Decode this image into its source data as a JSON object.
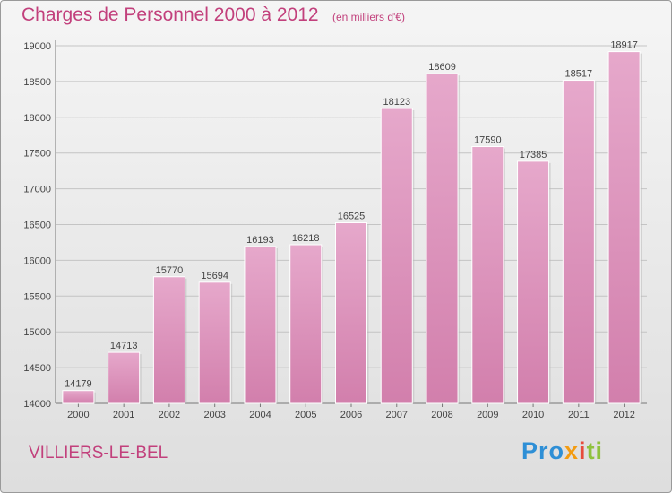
{
  "header": {
    "title": "Charges de Personnel 2000 à 2012",
    "subtitle": "(en milliers d'€)"
  },
  "footer": {
    "city": "VILLIERS-LE-BEL",
    "logo": {
      "text_1": "Pro",
      "text_2": "x",
      "text_3": "i",
      "text_4": "ti",
      "colors": [
        "#2e8fd6",
        "#f39c12",
        "#e74c3c",
        "#8fc23e"
      ]
    }
  },
  "chart_data": {
    "type": "bar",
    "title": "Charges de Personnel 2000 à 2012",
    "subtitle": "(en milliers d'€)",
    "xlabel": "",
    "ylabel": "",
    "categories": [
      "2000",
      "2001",
      "2002",
      "2003",
      "2004",
      "2005",
      "2006",
      "2007",
      "2008",
      "2009",
      "2010",
      "2011",
      "2012"
    ],
    "values": [
      14179,
      14713,
      15770,
      15694,
      16193,
      16218,
      16525,
      18123,
      18609,
      17590,
      17385,
      18517,
      18917
    ],
    "data_labels": [
      "14179",
      "14713",
      "15770",
      "15694",
      "16193",
      "16218",
      "16525",
      "18123",
      "18609",
      "17590",
      "17385",
      "18517",
      "18917"
    ],
    "ylim": [
      14000,
      19000
    ],
    "yticks": [
      14000,
      14500,
      15000,
      15500,
      16000,
      16500,
      17000,
      17500,
      18000,
      18500,
      19000
    ],
    "grid": true,
    "legend": "none",
    "bar_color": "#d27fac",
    "bar_color_light": "#e6a8cb",
    "accent_color": "#c2407c"
  }
}
